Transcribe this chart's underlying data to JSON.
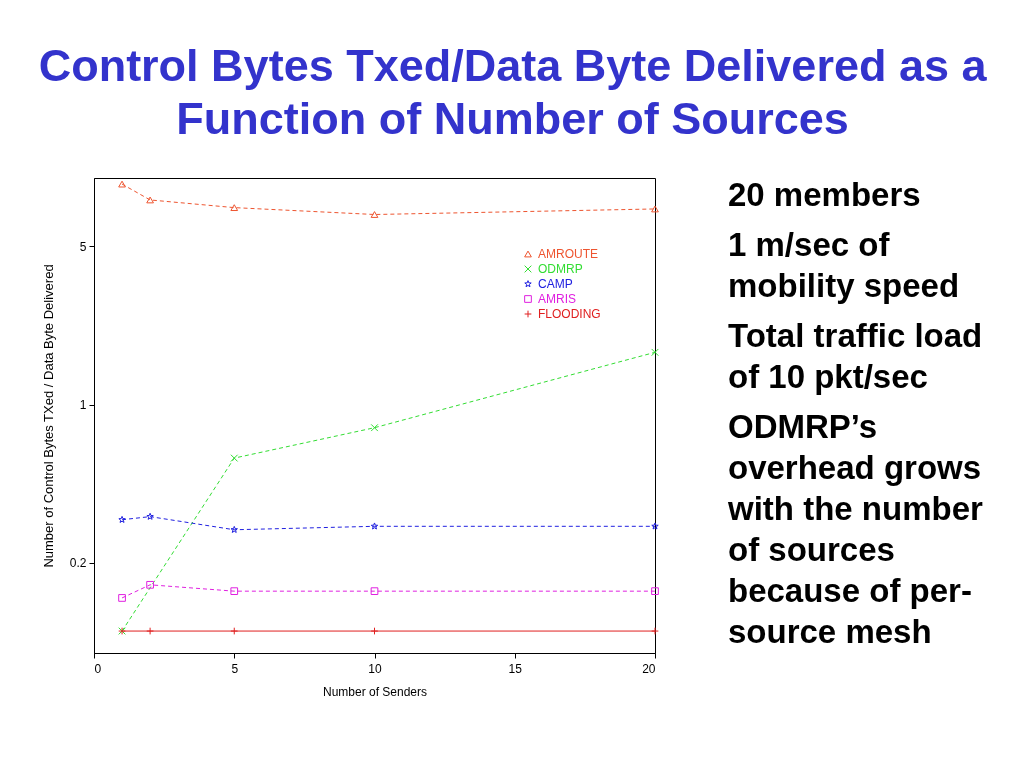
{
  "chart_data": {
    "type": "line",
    "title": "Control Bytes Txed/Data Byte Delivered as a Function of Number of Sources",
    "xlabel": "Number of Senders",
    "ylabel": "Number of Control Bytes TXed / Data Byte Delivered",
    "x": [
      1,
      2,
      5,
      10,
      20
    ],
    "series": [
      {
        "name": "AMROUTE",
        "color": "#ee5530",
        "values": [
          9.4,
          8.0,
          7.4,
          6.9,
          7.3
        ],
        "marker": "triangle",
        "line_style": "dashed"
      },
      {
        "name": "ODMRP",
        "color": "#33dd33",
        "x": [
          1,
          5,
          10,
          20
        ],
        "values": [
          0.1,
          0.58,
          0.79,
          1.7
        ],
        "marker": "cross",
        "line_style": "dashed"
      },
      {
        "name": "CAMP",
        "color": "#2020e0",
        "values": [
          0.31,
          0.32,
          0.28,
          0.29,
          0.29
        ],
        "marker": "star",
        "line_style": "dashed"
      },
      {
        "name": "AMRIS",
        "color": "#e020e0",
        "values": [
          0.14,
          0.16,
          0.15,
          0.15,
          0.15
        ],
        "marker": "square",
        "line_style": "dashed"
      },
      {
        "name": "FLOODING",
        "color": "#e02020",
        "values": [
          0.1,
          0.1,
          0.1,
          0.1,
          0.1
        ],
        "marker": "plus",
        "line_style": "solid"
      }
    ],
    "xlim": [
      0,
      20
    ],
    "xticks": [
      0,
      5,
      10,
      15,
      20
    ],
    "ylim": [
      0.08,
      10
    ],
    "yticks": [
      0.2,
      1,
      5
    ],
    "log": "y",
    "legend": "top right",
    "annotations": [
      "20 members",
      "1 m/sec of mobility speed",
      "Total traffic load of 10 pkt/sec",
      "ODMRP’s overhead grows with the number of sources because of per-source mesh"
    ]
  }
}
